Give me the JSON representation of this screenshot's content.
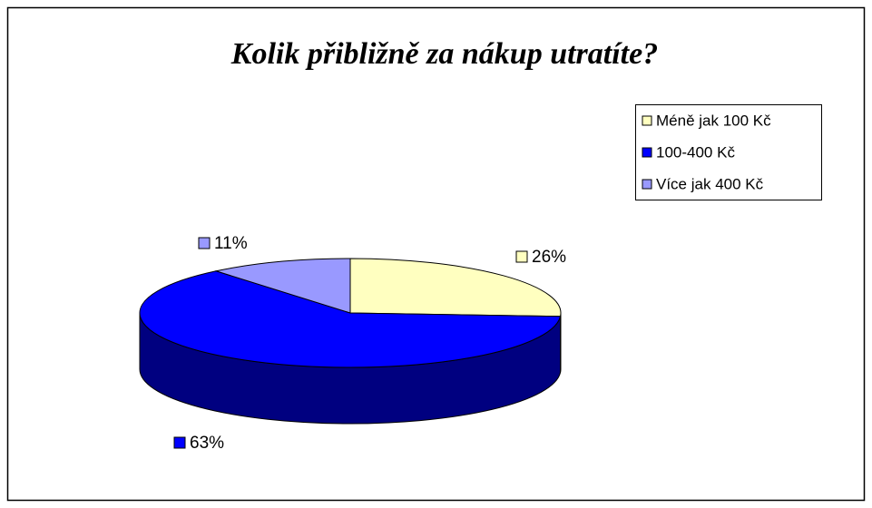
{
  "chart_data": {
    "type": "pie",
    "title": "Kolik přibližně za nákup utratíte?",
    "categories": [
      "Méně jak 100 Kč",
      "100-400 Kč",
      "Více jak 400 Kč"
    ],
    "values": [
      26,
      63,
      11
    ],
    "value_labels": [
      "26%",
      "63%",
      "11%"
    ],
    "colors": [
      "#ffffc0",
      "#0000ff",
      "#9999ff"
    ],
    "legend": "right"
  }
}
